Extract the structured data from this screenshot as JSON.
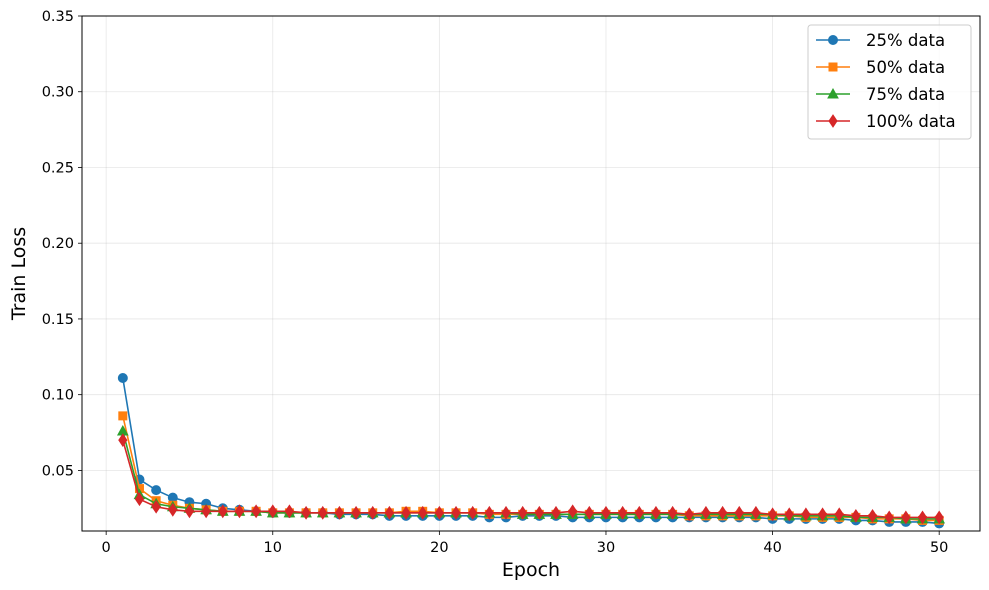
{
  "chart_data": {
    "type": "line",
    "xlabel": "Epoch",
    "ylabel": "Train Loss",
    "xlim": [
      -1.45,
      52.45
    ],
    "ylim": [
      0.01,
      0.35
    ],
    "xticks": [
      0,
      10,
      20,
      30,
      40,
      50
    ],
    "yticks": [
      0.05,
      0.1,
      0.15,
      0.2,
      0.25,
      0.3,
      0.35
    ],
    "xtick_labels": [
      "0",
      "10",
      "20",
      "30",
      "40",
      "50"
    ],
    "ytick_labels": [
      "0.05",
      "0.10",
      "0.15",
      "0.20",
      "0.25",
      "0.30",
      "0.35"
    ],
    "grid": true,
    "legend_position": "top-right",
    "x": [
      1,
      2,
      3,
      4,
      5,
      6,
      7,
      8,
      9,
      10,
      11,
      12,
      13,
      14,
      15,
      16,
      17,
      18,
      19,
      20,
      21,
      22,
      23,
      24,
      25,
      26,
      27,
      28,
      29,
      30,
      31,
      32,
      33,
      34,
      35,
      36,
      37,
      38,
      39,
      40,
      41,
      42,
      43,
      44,
      45,
      46,
      47,
      48,
      49,
      50
    ],
    "series": [
      {
        "name": "25% data",
        "color": "#1f77b4",
        "marker": "circle",
        "values": [
          0.111,
          0.044,
          0.037,
          0.032,
          0.029,
          0.028,
          0.025,
          0.024,
          0.023,
          0.022,
          0.022,
          0.022,
          0.022,
          0.021,
          0.021,
          0.021,
          0.02,
          0.02,
          0.02,
          0.02,
          0.02,
          0.02,
          0.019,
          0.019,
          0.02,
          0.02,
          0.02,
          0.019,
          0.019,
          0.019,
          0.019,
          0.019,
          0.019,
          0.019,
          0.019,
          0.019,
          0.019,
          0.019,
          0.019,
          0.018,
          0.018,
          0.018,
          0.018,
          0.018,
          0.017,
          0.017,
          0.016,
          0.016,
          0.016,
          0.015
        ]
      },
      {
        "name": "50% data",
        "color": "#ff7f0e",
        "marker": "square",
        "values": [
          0.086,
          0.038,
          0.03,
          0.027,
          0.025,
          0.024,
          0.023,
          0.023,
          0.023,
          0.022,
          0.022,
          0.022,
          0.022,
          0.022,
          0.022,
          0.022,
          0.022,
          0.023,
          0.023,
          0.022,
          0.022,
          0.022,
          0.021,
          0.021,
          0.021,
          0.021,
          0.021,
          0.021,
          0.021,
          0.021,
          0.021,
          0.021,
          0.021,
          0.021,
          0.02,
          0.02,
          0.02,
          0.02,
          0.02,
          0.02,
          0.02,
          0.019,
          0.019,
          0.019,
          0.019,
          0.018,
          0.018,
          0.018,
          0.017,
          0.017
        ]
      },
      {
        "name": "75% data",
        "color": "#2ca02c",
        "marker": "triangle",
        "values": [
          0.076,
          0.034,
          0.028,
          0.026,
          0.025,
          0.024,
          0.023,
          0.023,
          0.023,
          0.022,
          0.022,
          0.022,
          0.022,
          0.022,
          0.022,
          0.022,
          0.022,
          0.022,
          0.022,
          0.022,
          0.022,
          0.022,
          0.022,
          0.022,
          0.021,
          0.021,
          0.021,
          0.021,
          0.021,
          0.021,
          0.021,
          0.021,
          0.021,
          0.021,
          0.021,
          0.021,
          0.021,
          0.021,
          0.021,
          0.021,
          0.02,
          0.02,
          0.02,
          0.02,
          0.019,
          0.019,
          0.019,
          0.018,
          0.018,
          0.018
        ]
      },
      {
        "name": "100% data",
        "color": "#d62728",
        "marker": "diamond",
        "values": [
          0.07,
          0.031,
          0.026,
          0.024,
          0.023,
          0.023,
          0.023,
          0.023,
          0.023,
          0.023,
          0.023,
          0.022,
          0.022,
          0.022,
          0.022,
          0.022,
          0.022,
          0.022,
          0.022,
          0.022,
          0.022,
          0.022,
          0.022,
          0.022,
          0.022,
          0.022,
          0.022,
          0.023,
          0.022,
          0.022,
          0.022,
          0.022,
          0.022,
          0.022,
          0.021,
          0.022,
          0.022,
          0.022,
          0.022,
          0.021,
          0.021,
          0.021,
          0.021,
          0.021,
          0.02,
          0.02,
          0.019,
          0.019,
          0.019,
          0.019
        ]
      }
    ]
  }
}
